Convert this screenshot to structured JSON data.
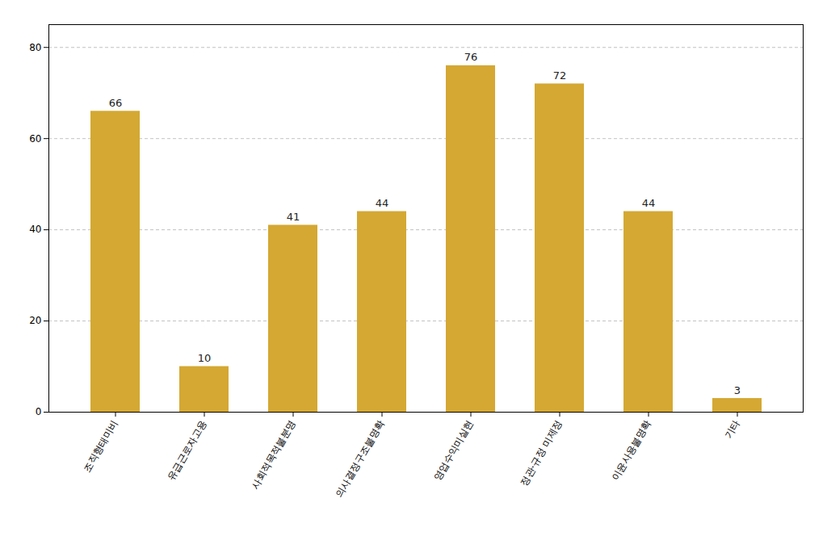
{
  "chart_data": {
    "type": "bar",
    "categories": [
      "조직형태미비",
      "유급근로자고용",
      "사회적목적불분명",
      "의사결정구조불명확",
      "영업수익미실현",
      "정관·규정 미제정",
      "이윤사용불명확",
      "기타"
    ],
    "values": [
      66,
      10,
      41,
      44,
      76,
      72,
      44,
      3
    ],
    "color": "#D4A832",
    "ylim": [
      0,
      85
    ],
    "yticks": [
      0,
      20,
      40,
      60,
      80
    ],
    "grid": true,
    "data_labels": true
  }
}
